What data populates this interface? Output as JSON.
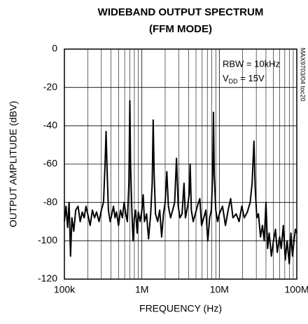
{
  "chart_data": {
    "type": "line",
    "title": "WIDEBAND OUTPUT SPECTRUM",
    "subtitle": "(FFM MODE)",
    "x_label": "FREQUENCY (Hz)",
    "y_label": "OUTPUT AMPLITUDE (dBV)",
    "annotation_rbw": "RBW = 10kHz",
    "annotation_vdd": {
      "main": "V",
      "sub": "DD",
      "rest": " = 15V"
    },
    "figure_code": "MAX9703/04 toc20",
    "xscale": "log",
    "grid": true,
    "xlim": [
      100000,
      100000000
    ],
    "xticks": [
      {
        "value": 100000,
        "label": "100k"
      },
      {
        "value": 1000000,
        "label": "1M"
      },
      {
        "value": 10000000,
        "label": "10M"
      },
      {
        "value": 100000000,
        "label": "100M"
      }
    ],
    "xminorticks": [
      200000,
      300000,
      400000,
      500000,
      600000,
      700000,
      800000,
      900000,
      2000000,
      3000000,
      4000000,
      5000000,
      6000000,
      7000000,
      8000000,
      9000000,
      20000000,
      30000000,
      40000000,
      50000000,
      60000000,
      70000000,
      80000000,
      90000000
    ],
    "ylim": [
      -120,
      0
    ],
    "yticks": [
      -120,
      -100,
      -80,
      -60,
      -40,
      -20,
      0
    ],
    "x": [
      100000,
      105000,
      110000,
      115000,
      120000,
      125000,
      132000,
      140000,
      150000,
      160000,
      170000,
      180000,
      190000,
      200000,
      215000,
      230000,
      245000,
      260000,
      280000,
      300000,
      320000,
      335000,
      345000,
      355000,
      370000,
      390000,
      410000,
      430000,
      450000,
      470000,
      500000,
      530000,
      560000,
      590000,
      620000,
      650000,
      680000,
      700000,
      715000,
      740000,
      770000,
      800000,
      830000,
      870000,
      900000,
      950000,
      1000000,
      1040000,
      1080000,
      1150000,
      1220000,
      1300000,
      1360000,
      1400000,
      1440000,
      1500000,
      1600000,
      1700000,
      1800000,
      1900000,
      2000000,
      2100000,
      2200000,
      2350000,
      2500000,
      2650000,
      2800000,
      2950000,
      3100000,
      3300000,
      3500000,
      3650000,
      3900000,
      4100000,
      4200000,
      4350000,
      4600000,
      4900000,
      5200000,
      5600000,
      5900000,
      6300000,
      6700000,
      7100000,
      7500000,
      7900000,
      8200000,
      8400000,
      8600000,
      9000000,
      9500000,
      10000000,
      11000000,
      12000000,
      13000000,
      14000000,
      15000000,
      16500000,
      18000000,
      19500000,
      21000000,
      23000000,
      25000000,
      26500000,
      28000000,
      29000000,
      30500000,
      32000000,
      34000000,
      36000000,
      38000000,
      40000000,
      42000000,
      44000000,
      47000000,
      50000000,
      53000000,
      56000000,
      60000000,
      63000000,
      67000000,
      71000000,
      75000000,
      80000000,
      84000000,
      88000000,
      92000000,
      96000000,
      100000000
    ],
    "series": [
      {
        "name": "Output",
        "color": "#000000",
        "values": [
          -90,
          -82,
          -93,
          -80,
          -108,
          -88,
          -95,
          -84,
          -82,
          -90,
          -85,
          -88,
          -82,
          -86,
          -92,
          -84,
          -88,
          -85,
          -90,
          -84,
          -80,
          -60,
          -43,
          -62,
          -84,
          -90,
          -86,
          -82,
          -88,
          -85,
          -92,
          -84,
          -88,
          -80,
          -86,
          -90,
          -70,
          -27,
          -60,
          -82,
          -100,
          -88,
          -84,
          -96,
          -85,
          -90,
          -84,
          -76,
          -90,
          -86,
          -99,
          -86,
          -70,
          -37,
          -65,
          -86,
          -90,
          -84,
          -98,
          -86,
          -80,
          -64,
          -82,
          -88,
          -84,
          -80,
          -57,
          -82,
          -88,
          -86,
          -70,
          -88,
          -82,
          -75,
          -60,
          -84,
          -90,
          -86,
          -82,
          -78,
          -92,
          -88,
          -84,
          -100,
          -88,
          -84,
          -65,
          -33,
          -66,
          -84,
          -90,
          -86,
          -82,
          -92,
          -84,
          -78,
          -88,
          -86,
          -90,
          -82,
          -88,
          -85,
          -80,
          -70,
          -48,
          -72,
          -88,
          -86,
          -98,
          -92,
          -100,
          -80,
          -104,
          -96,
          -108,
          -100,
          -94,
          -106,
          -98,
          -104,
          -92,
          -110,
          -100,
          -112,
          -96,
          -108,
          -100,
          -94,
          -96
        ]
      }
    ]
  }
}
